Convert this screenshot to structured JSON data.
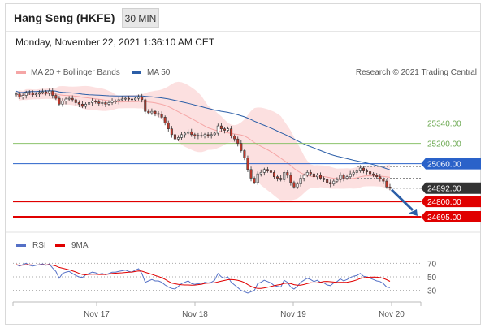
{
  "header": {
    "title": "Hang Seng (HKFE)",
    "timeframe": "30 MIN",
    "datetime": "Monday, November 22, 2021 1:36:10 AM CET"
  },
  "legend": {
    "bb_label": "MA 20 + Bollinger Bands",
    "ma50_label": "MA 50",
    "credit": "Research © 2021 Trading Central",
    "rsi_label": "RSI",
    "ma9_label": "9MA"
  },
  "colors": {
    "bb": "#f5a6a6",
    "ma50": "#2b5ea7",
    "resistance": "#8cc26b",
    "pivot": "#2a62c9",
    "support": "#e00000",
    "last": "#333333",
    "rsi": "#5470c6",
    "ma9": "#e00000",
    "candle_up": "#ffffff",
    "candle_down": "#c0392b"
  },
  "chart_data": [
    {
      "type": "candlestick",
      "x_ticks": [
        "Nov 17",
        "Nov 18",
        "Nov 19",
        "Nov 20"
      ],
      "ylim": [
        24650,
        25600
      ],
      "levels": [
        {
          "value": 25340,
          "label": "25340.00",
          "kind": "resistance"
        },
        {
          "value": 25200,
          "label": "25200.00",
          "kind": "resistance"
        },
        {
          "value": 25060,
          "label": "25060.00",
          "kind": "pivot"
        },
        {
          "value": 24892,
          "label": "24892.00",
          "kind": "last"
        },
        {
          "value": 24800,
          "label": "24800.00",
          "kind": "support"
        },
        {
          "value": 24695,
          "label": "24695.00",
          "kind": "support"
        }
      ],
      "close": [
        25540,
        25520,
        25530,
        25550,
        25545,
        25535,
        25540,
        25550,
        25555,
        25545,
        25560,
        25530,
        25510,
        25470,
        25490,
        25505,
        25510,
        25500,
        25480,
        25470,
        25455,
        25470,
        25480,
        25490,
        25485,
        25475,
        25480,
        25470,
        25480,
        25490,
        25490,
        25500,
        25505,
        25510,
        25505,
        25500,
        25510,
        25520,
        25500,
        25420,
        25410,
        25420,
        25405,
        25400,
        25380,
        25340,
        25300,
        25260,
        25230,
        25240,
        25260,
        25270,
        25280,
        25260,
        25250,
        25255,
        25250,
        25260,
        25255,
        25260,
        25270,
        25320,
        25300,
        25290,
        25300,
        25250,
        25230,
        25200,
        25150,
        25100,
        25020,
        24960,
        24930,
        24990,
        25000,
        25020,
        25010,
        25000,
        24970,
        24960,
        24950,
        25000,
        24980,
        24930,
        24900,
        24920,
        24960,
        24980,
        25000,
        24990,
        24970,
        24980,
        24960,
        24950,
        24930,
        24920,
        24940,
        24950,
        24980,
        24960,
        24970,
        24990,
        25000,
        25010,
        25030,
        25010,
        25005,
        24990,
        24980,
        24970,
        24955,
        24940,
        24900,
        24892
      ],
      "rsi": [
        68,
        66,
        68,
        70,
        67,
        66,
        67,
        68,
        69,
        67,
        69,
        63,
        58,
        48,
        55,
        57,
        58,
        55,
        52,
        50,
        49,
        53,
        55,
        57,
        56,
        54,
        55,
        53,
        55,
        57,
        57,
        58,
        59,
        60,
        58,
        57,
        60,
        62,
        55,
        42,
        44,
        46,
        44,
        44,
        42,
        38,
        35,
        33,
        32,
        36,
        40,
        42,
        44,
        40,
        39,
        40,
        39,
        42,
        41,
        42,
        45,
        55,
        50,
        48,
        50,
        42,
        38,
        34,
        30,
        28,
        26,
        28,
        30,
        40,
        42,
        45,
        43,
        41,
        37,
        36,
        35,
        45,
        42,
        35,
        32,
        36,
        42,
        45,
        48,
        46,
        43,
        45,
        42,
        41,
        38,
        37,
        41,
        43,
        47,
        44,
        46,
        49,
        51,
        52,
        55,
        51,
        50,
        48,
        46,
        44,
        43,
        40,
        35,
        34
      ],
      "rsi_ticks": [
        70,
        50,
        30
      ]
    }
  ]
}
